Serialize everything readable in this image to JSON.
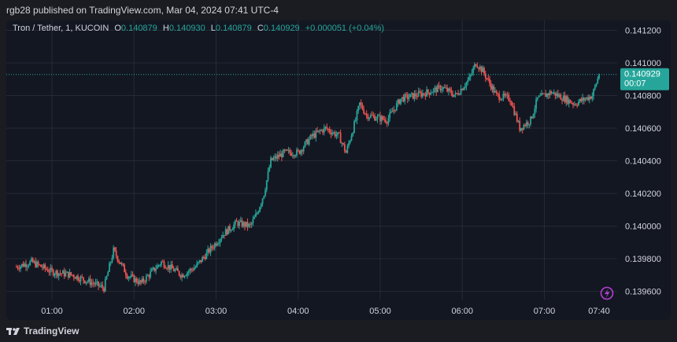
{
  "header": {
    "published_text": "rgb28 published on TradingView.com, Mar 04, 2024 07:41 UTC-4"
  },
  "legend": {
    "symbol": "Tron / Tether, 1, KUCOIN",
    "open_label": "O",
    "open_value": "0.140879",
    "high_label": "H",
    "high_value": "0.140930",
    "low_label": "L",
    "low_value": "0.140879",
    "close_label": "C",
    "close_value": "0.140929",
    "change": "+0.000051 (+0.04%)"
  },
  "price_tag": {
    "price": "0.140929",
    "countdown": "00:07"
  },
  "footer": {
    "brand": "TradingView"
  },
  "colors": {
    "up": "#26a69a",
    "down": "#ef5350",
    "background": "#131722",
    "grid": "#262a35",
    "alert_icon": "#b83ed6"
  },
  "icons": {
    "alert": "lightning-bolt-icon",
    "logo": "tradingview-logo-icon"
  },
  "chart_data": {
    "type": "candlestick",
    "symbol": "Tron / Tether",
    "interval": "1",
    "exchange": "KUCOIN",
    "y_ticks": [
      "0.141200",
      "0.141000",
      "0.140800",
      "0.140600",
      "0.140400",
      "0.140200",
      "0.140000",
      "0.139800",
      "0.139600"
    ],
    "x_ticks": [
      "01:00",
      "02:00",
      "03:00",
      "04:00",
      "05:00",
      "06:00",
      "07:00",
      "07:40"
    ],
    "ylim": [
      0.13955,
      0.14126
    ],
    "grid": true,
    "last_price": 0.140929,
    "trend_points": [
      [
        "00:34",
        0.13975
      ],
      [
        "00:45",
        0.13978
      ],
      [
        "01:00",
        0.13972
      ],
      [
        "01:15",
        0.1397
      ],
      [
        "01:30",
        0.13965
      ],
      [
        "01:38",
        0.13962
      ],
      [
        "01:45",
        0.13985
      ],
      [
        "01:55",
        0.1397
      ],
      [
        "02:05",
        0.13965
      ],
      [
        "02:20",
        0.13978
      ],
      [
        "02:35",
        0.1397
      ],
      [
        "02:45",
        0.13975
      ],
      [
        "02:55",
        0.13985
      ],
      [
        "03:05",
        0.13995
      ],
      [
        "03:15",
        0.14002
      ],
      [
        "03:25",
        0.14
      ],
      [
        "03:30",
        0.14008
      ],
      [
        "03:35",
        0.1402
      ],
      [
        "03:40",
        0.1404
      ],
      [
        "03:50",
        0.14045
      ],
      [
        "04:00",
        0.14045
      ],
      [
        "04:10",
        0.14055
      ],
      [
        "04:20",
        0.1406
      ],
      [
        "04:30",
        0.14055
      ],
      [
        "04:35",
        0.14045
      ],
      [
        "04:42",
        0.14065
      ],
      [
        "04:45",
        0.14075
      ],
      [
        "04:50",
        0.14068
      ],
      [
        "05:05",
        0.14065
      ],
      [
        "05:15",
        0.14078
      ],
      [
        "05:25",
        0.1408
      ],
      [
        "05:35",
        0.14082
      ],
      [
        "05:45",
        0.14085
      ],
      [
        "05:55",
        0.1408
      ],
      [
        "06:05",
        0.1409
      ],
      [
        "06:10",
        0.141
      ],
      [
        "06:15",
        0.14095
      ],
      [
        "06:25",
        0.1408
      ],
      [
        "06:35",
        0.14078
      ],
      [
        "06:42",
        0.1406
      ],
      [
        "06:50",
        0.14065
      ],
      [
        "06:55",
        0.14078
      ],
      [
        "07:05",
        0.14082
      ],
      [
        "07:15",
        0.14078
      ],
      [
        "07:22",
        0.14075
      ],
      [
        "07:30",
        0.14078
      ],
      [
        "07:35",
        0.1408
      ],
      [
        "07:40",
        0.140929
      ]
    ]
  }
}
